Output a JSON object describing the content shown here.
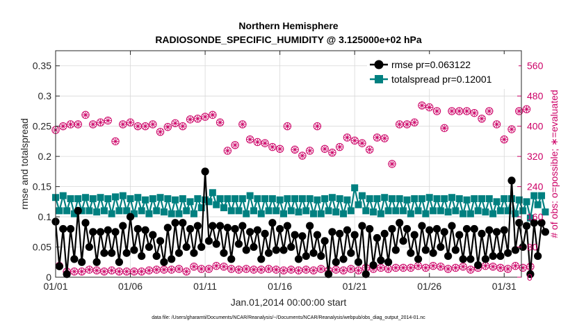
{
  "chart_data": {
    "type": "line",
    "title": "Northern Hemisphere",
    "subtitle": "RADIOSONDE_SPECIFIC_HUMIDITY @ 3.125000e+02 hPa",
    "xlabel": "Jan.01,2014 00:00:00 start",
    "ylabel_left": "rmse and totalspread",
    "ylabel_right": "# of obs: o=possible; ∗=evaluated",
    "footnote": "data file: /Users/gharamti/Documents/NCAR/Reanalysis/~/Documents/NCAR/Reanalysis/webpub/obs_diag_output_2014-01.nc",
    "xlim": [
      1,
      32.15
    ],
    "ylim_left": [
      0,
      0.375
    ],
    "ylim_right": [
      0,
      600
    ],
    "x_ticks": [
      1,
      6,
      11,
      16,
      21,
      26,
      31
    ],
    "x_tick_labels": [
      "01/01",
      "01/06",
      "01/11",
      "01/16",
      "01/21",
      "01/26",
      "01/31"
    ],
    "y_left_ticks": [
      0,
      0.05,
      0.1,
      0.15,
      0.2,
      0.25,
      0.3,
      0.35
    ],
    "y_left_tick_labels": [
      "0",
      "0.05",
      "0.1",
      "0.15",
      "0.2",
      "0.25",
      "0.3",
      "0.35"
    ],
    "y_right_ticks": [
      0,
      80,
      160,
      240,
      320,
      400,
      480,
      560
    ],
    "y_right_tick_labels": [
      "0",
      "80",
      "160",
      "240",
      "320",
      "400",
      "480",
      "560"
    ],
    "x_start": 1.0,
    "x_step": 0.25,
    "legend": {
      "position": "top-right",
      "entries": [
        "rmse pr=0.063122",
        "totalspread pr=0.12001"
      ]
    },
    "colors": {
      "rmse": "#000000",
      "totalspread": "#008080",
      "obs": "#cc0066"
    },
    "series": [
      {
        "name": "rmse pr=0.063122",
        "axis": "left",
        "values": [
          0.092,
          0.018,
          0.08,
          0.005,
          0.08,
          0.03,
          0.11,
          0.025,
          0.09,
          0.05,
          0.075,
          0.025,
          0.075,
          0.04,
          0.078,
          0.04,
          0.075,
          0.025,
          0.085,
          0.04,
          0.1,
          0.045,
          0.08,
          0.035,
          0.078,
          0.05,
          0.07,
          0.035,
          0.06,
          0.025,
          0.082,
          0.03,
          0.09,
          0.04,
          0.09,
          0.05,
          0.08,
          0.04,
          0.085,
          0.05,
          0.175,
          0.06,
          0.085,
          0.055,
          0.085,
          0.04,
          0.082,
          0.03,
          0.08,
          0.055,
          0.085,
          0.045,
          0.075,
          0.05,
          0.078,
          0.03,
          0.072,
          0.04,
          0.09,
          0.045,
          0.08,
          0.045,
          0.085,
          0.05,
          0.07,
          0.03,
          0.068,
          0.035,
          0.085,
          0.04,
          0.07,
          0.035,
          0.06,
          0.005,
          0.075,
          0.025,
          0.072,
          0.03,
          0.078,
          0.04,
          0.07,
          0.025,
          0.085,
          0.005,
          0.08,
          0.02,
          0.065,
          0.028,
          0.072,
          0.025,
          0.08,
          0.045,
          0.09,
          0.06,
          0.08,
          0.04,
          0.07,
          0.03,
          0.085,
          0.045,
          0.078,
          0.04,
          0.08,
          0.05,
          0.075,
          0.035,
          0.085,
          0.045,
          0.07,
          0.03,
          0.08,
          0.03,
          0.08,
          0.02,
          0.072,
          0.03,
          0.078,
          0.035,
          0.075,
          0.035,
          0.078,
          0.04,
          0.16,
          0.045,
          0.09,
          0.05,
          0.085,
          0.005,
          0.09,
          0.035,
          0.09,
          0.075
        ]
      },
      {
        "name": "totalspread pr=0.12001",
        "axis": "left",
        "values": [
          0.132,
          0.11,
          0.135,
          0.11,
          0.13,
          0.105,
          0.13,
          0.11,
          0.132,
          0.11,
          0.13,
          0.108,
          0.132,
          0.11,
          0.13,
          0.105,
          0.133,
          0.11,
          0.135,
          0.11,
          0.13,
          0.105,
          0.132,
          0.11,
          0.128,
          0.105,
          0.13,
          0.11,
          0.132,
          0.108,
          0.13,
          0.105,
          0.128,
          0.105,
          0.13,
          0.11,
          0.125,
          0.105,
          0.13,
          0.115,
          0.128,
          0.125,
          0.14,
          0.12,
          0.13,
          0.115,
          0.13,
          0.11,
          0.13,
          0.11,
          0.13,
          0.105,
          0.135,
          0.11,
          0.13,
          0.105,
          0.13,
          0.11,
          0.13,
          0.11,
          0.128,
          0.105,
          0.13,
          0.11,
          0.13,
          0.108,
          0.13,
          0.11,
          0.13,
          0.105,
          0.128,
          0.105,
          0.13,
          0.11,
          0.132,
          0.108,
          0.13,
          0.105,
          0.128,
          0.11,
          0.148,
          0.12,
          0.135,
          0.11,
          0.13,
          0.108,
          0.13,
          0.105,
          0.132,
          0.11,
          0.13,
          0.11,
          0.13,
          0.11,
          0.128,
          0.105,
          0.13,
          0.11,
          0.13,
          0.105,
          0.132,
          0.11,
          0.13,
          0.11,
          0.13,
          0.108,
          0.132,
          0.11,
          0.13,
          0.105,
          0.128,
          0.105,
          0.13,
          0.11,
          0.13,
          0.108,
          0.13,
          0.105,
          0.125,
          0.11,
          0.13,
          0.11,
          0.13,
          0.105,
          0.128,
          0.11,
          0.125,
          0.098,
          0.135,
          0.12,
          0.135,
          0.108
        ]
      },
      {
        "name": "# of obs possible (o)",
        "axis": "right",
        "values": [
          390,
          30,
          400,
          15,
          405,
          15,
          405,
          15,
          430,
          20,
          405,
          18,
          410,
          15,
          415,
          18,
          360,
          15,
          405,
          15,
          410,
          15,
          400,
          15,
          400,
          18,
          405,
          20,
          385,
          20,
          398,
          20,
          408,
          22,
          400,
          15,
          418,
          28,
          420,
          22,
          425,
          22,
          430,
          30,
          410,
          28,
          335,
          22,
          350,
          20,
          405,
          22,
          365,
          20,
          358,
          20,
          355,
          22,
          345,
          20,
          340,
          18,
          400,
          20,
          338,
          18,
          322,
          20,
          335,
          18,
          400,
          22,
          340,
          18,
          330,
          20,
          345,
          18,
          370,
          22,
          362,
          18,
          355,
          25,
          338,
          22,
          370,
          25,
          368,
          22,
          300,
          25,
          405,
          25,
          405,
          25,
          410,
          30,
          455,
          25,
          450,
          30,
          440,
          28,
          395,
          22,
          440,
          25,
          440,
          28,
          440,
          20,
          435,
          25,
          420,
          30,
          440,
          28,
          405,
          25,
          365,
          22,
          392,
          30,
          440,
          25,
          445,
          28
        ]
      },
      {
        "name": "# of obs evaluated (∗)",
        "axis": "right",
        "values": [
          390,
          30,
          400,
          15,
          405,
          15,
          405,
          15,
          430,
          20,
          405,
          18,
          410,
          15,
          415,
          18,
          360,
          15,
          405,
          15,
          410,
          15,
          400,
          15,
          400,
          18,
          405,
          20,
          385,
          20,
          398,
          20,
          408,
          22,
          400,
          15,
          418,
          28,
          420,
          22,
          425,
          22,
          430,
          30,
          410,
          28,
          335,
          22,
          350,
          20,
          405,
          22,
          365,
          20,
          358,
          20,
          355,
          22,
          345,
          20,
          340,
          18,
          400,
          20,
          338,
          18,
          322,
          20,
          335,
          18,
          400,
          22,
          340,
          18,
          330,
          20,
          345,
          18,
          370,
          22,
          362,
          18,
          355,
          25,
          338,
          22,
          370,
          25,
          368,
          22,
          300,
          25,
          405,
          25,
          405,
          25,
          410,
          30,
          455,
          25,
          450,
          30,
          440,
          28,
          395,
          22,
          440,
          25,
          440,
          28,
          440,
          20,
          435,
          25,
          420,
          30,
          440,
          28,
          405,
          25,
          365,
          22,
          392,
          30,
          440,
          25,
          445,
          28
        ]
      }
    ]
  }
}
